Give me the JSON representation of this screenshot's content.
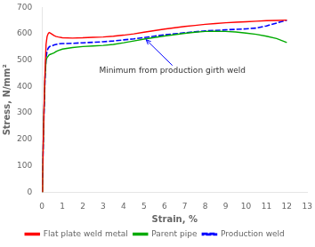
{
  "chart_data": {
    "type": "line",
    "xlabel": "Strain, %",
    "ylabel": "Stress, N/mm²",
    "x": [
      0.0,
      0.03,
      0.06,
      0.1,
      0.15,
      0.2,
      0.25,
      0.3,
      0.35,
      0.4,
      0.5,
      0.6,
      0.7,
      0.8,
      1.0,
      1.5,
      2.0,
      2.5,
      3.0,
      3.5,
      4.0,
      4.5,
      5.0,
      5.5,
      6.0,
      6.5,
      7.0,
      7.5,
      8.0,
      8.5,
      9.0,
      9.5,
      10.0,
      10.5,
      11.0,
      11.5,
      12.0
    ],
    "series": [
      {
        "name": "Flat plate weld metal",
        "color": "red",
        "line_style": "solid",
        "values": [
          0,
          60,
          180,
          320,
          460,
          560,
          590,
          600,
          605,
          603,
          598,
          593,
          590,
          588,
          585,
          584,
          585,
          587,
          588,
          591,
          595,
          600,
          606,
          612,
          618,
          623,
          628,
          632,
          636,
          639,
          642,
          644,
          646,
          648,
          650,
          651,
          652
        ]
      },
      {
        "name": "Parent pipe",
        "color": "#00aa00",
        "line_style": "solid",
        "values": [
          0,
          60,
          180,
          310,
          440,
          500,
          510,
          515,
          520,
          522,
          525,
          528,
          533,
          537,
          542,
          548,
          552,
          554,
          556,
          560,
          566,
          573,
          580,
          586,
          592,
          597,
          602,
          606,
          609,
          610,
          609,
          607,
          603,
          598,
          591,
          582,
          567
        ]
      },
      {
        "name": "Production weld",
        "color": "blue",
        "line_style": "dashed",
        "values": [
          0,
          55,
          170,
          300,
          430,
          510,
          535,
          545,
          550,
          553,
          555,
          558,
          560,
          562,
          563,
          564,
          566,
          568,
          570,
          573,
          577,
          581,
          586,
          591,
          596,
          600,
          604,
          608,
          611,
          613,
          615,
          617,
          619,
          622,
          630,
          641,
          652
        ]
      }
    ],
    "xlim": [
      0,
      13
    ],
    "ylim": [
      0,
      700
    ],
    "xticks": [
      0,
      1,
      2,
      3,
      4,
      5,
      6,
      7,
      8,
      9,
      10,
      11,
      12,
      13
    ],
    "yticks": [
      0,
      100,
      200,
      300,
      400,
      500,
      600,
      700
    ],
    "annotations": [
      {
        "text": "Minimum from production girth weld",
        "xy": [
          5.1,
          578
        ],
        "xytext": [
          2.8,
          460
        ],
        "color": "blue"
      }
    ],
    "grid": false,
    "legend": "bottom"
  }
}
